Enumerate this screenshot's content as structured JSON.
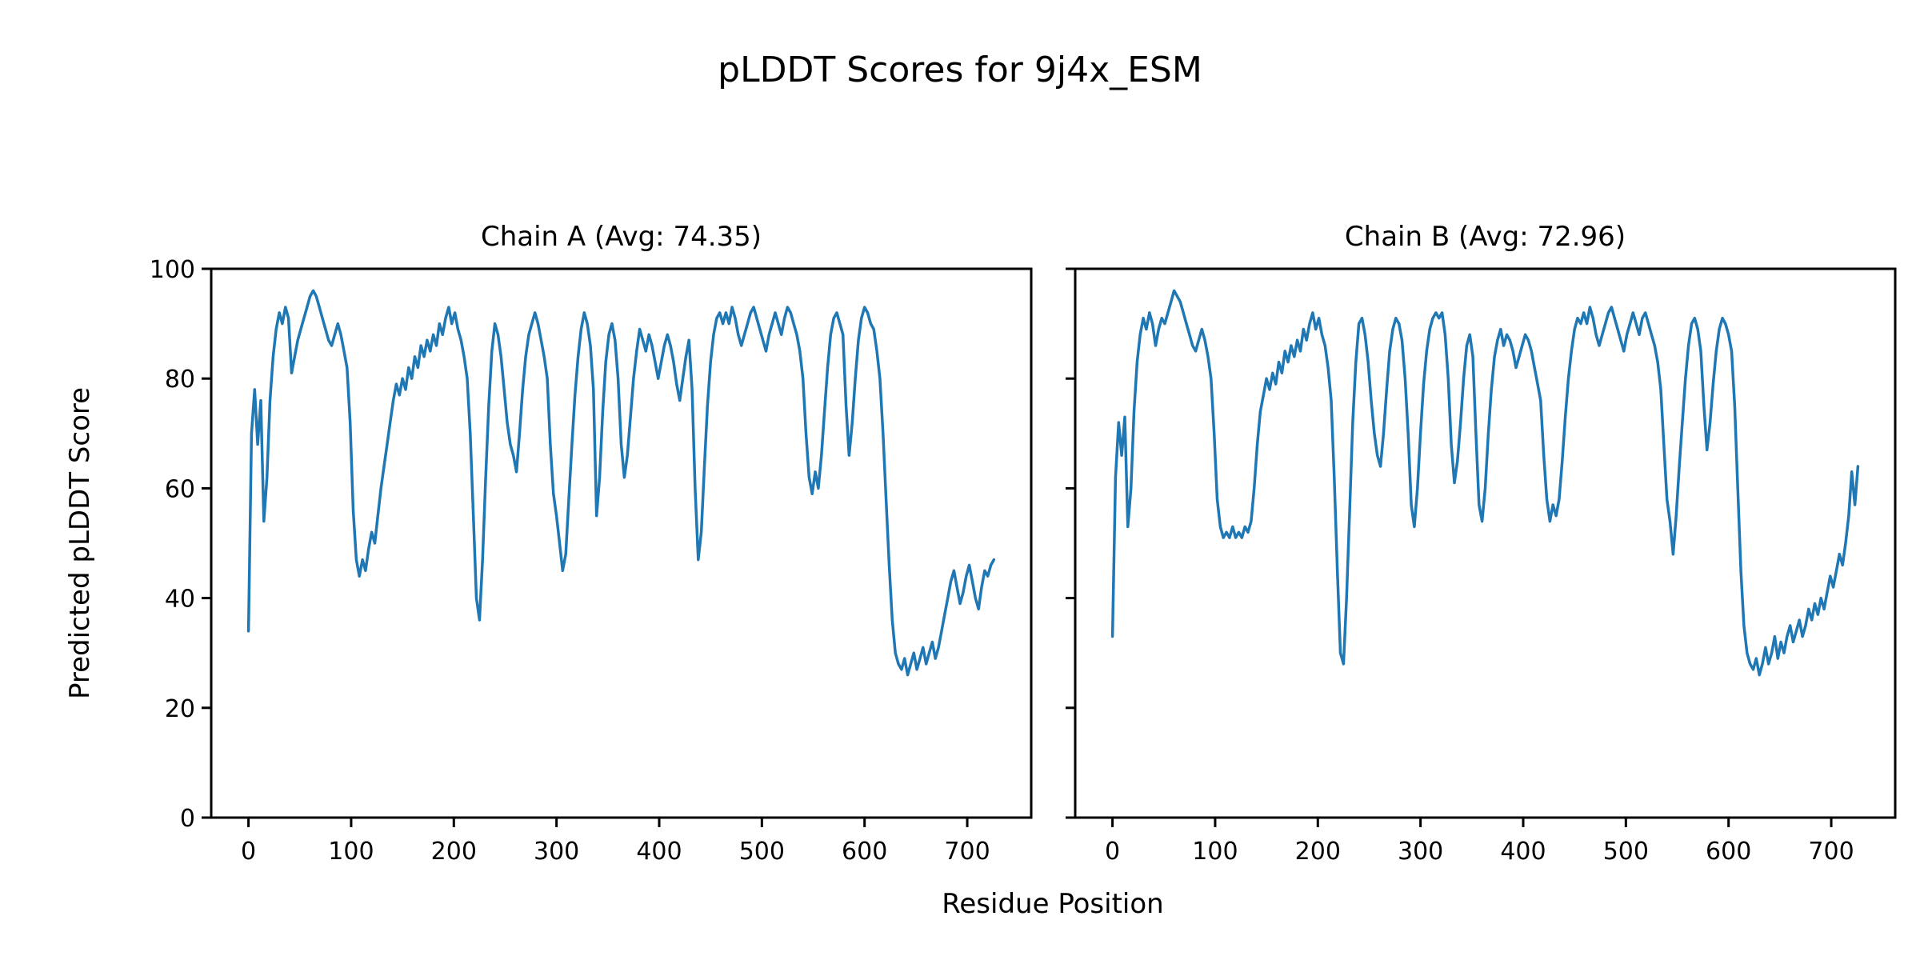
{
  "figure": {
    "title": "pLDDT Scores for 9j4x_ESM",
    "background_color": "#ffffff",
    "text_color": "#000000"
  },
  "shared": {
    "xlabel": "Residue Position",
    "ylabel": "Predicted pLDDT Score"
  },
  "chart_data": [
    {
      "type": "line",
      "title": "Chain A (Avg: 74.35)",
      "chain": "A",
      "average_plddt": 74.35,
      "line_color": "#1f77b4",
      "xlim": [
        -36.3,
        762.3
      ],
      "ylim": [
        0,
        100
      ],
      "x_ticks": [
        0,
        100,
        200,
        300,
        400,
        500,
        600,
        700
      ],
      "y_ticks": [
        0,
        20,
        40,
        60,
        80,
        100
      ],
      "y_tick_labels_shown": true,
      "grid": false,
      "legend": "none",
      "x_start": 0,
      "x_step": 3,
      "values": [
        34,
        70,
        78,
        68,
        76,
        54,
        62,
        76,
        84,
        89,
        92,
        90,
        93,
        91,
        81,
        84,
        87,
        89,
        91,
        93,
        95,
        96,
        95,
        93,
        91,
        89,
        87,
        86,
        88,
        90,
        88,
        85,
        82,
        72,
        56,
        47,
        44,
        47,
        45,
        49,
        52,
        50,
        55,
        60,
        64,
        68,
        72,
        76,
        79,
        77,
        80,
        78,
        82,
        80,
        84,
        82,
        86,
        84,
        87,
        85,
        88,
        86,
        90,
        88,
        91,
        93,
        90,
        92,
        89,
        87,
        84,
        80,
        70,
        55,
        40,
        36,
        47,
        62,
        75,
        85,
        90,
        88,
        84,
        78,
        72,
        68,
        66,
        63,
        70,
        78,
        84,
        88,
        90,
        92,
        90,
        87,
        84,
        80,
        68,
        59,
        55,
        50,
        45,
        48,
        58,
        68,
        77,
        84,
        89,
        92,
        90,
        86,
        78,
        55,
        62,
        74,
        83,
        88,
        90,
        87,
        80,
        68,
        62,
        66,
        73,
        80,
        85,
        89,
        87,
        85,
        88,
        86,
        83,
        80,
        83,
        86,
        88,
        86,
        83,
        79,
        76,
        80,
        84,
        87,
        78,
        60,
        47,
        52,
        64,
        75,
        83,
        88,
        91,
        92,
        90,
        92,
        90,
        93,
        91,
        88,
        86,
        88,
        90,
        92,
        93,
        91,
        89,
        87,
        85,
        88,
        90,
        92,
        90,
        88,
        91,
        93,
        92,
        90,
        88,
        85,
        80,
        70,
        62,
        59,
        63,
        60,
        66,
        74,
        82,
        88,
        91,
        92,
        90,
        88,
        75,
        66,
        72,
        80,
        87,
        91,
        93,
        92,
        90,
        89,
        85,
        80,
        70,
        58,
        46,
        36,
        30,
        28,
        27,
        29,
        26,
        28,
        30,
        27,
        29,
        31,
        28,
        30,
        32,
        29,
        31,
        34,
        37,
        40,
        43,
        45,
        42,
        39,
        41,
        44,
        46,
        43,
        40,
        38,
        42,
        45,
        44,
        46,
        47
      ]
    },
    {
      "type": "line",
      "title": "Chain B (Avg: 72.96)",
      "chain": "B",
      "average_plddt": 72.96,
      "line_color": "#1f77b4",
      "xlim": [
        -36.3,
        762.3
      ],
      "ylim": [
        0,
        100
      ],
      "x_ticks": [
        0,
        100,
        200,
        300,
        400,
        500,
        600,
        700
      ],
      "y_ticks": [
        0,
        20,
        40,
        60,
        80,
        100
      ],
      "y_tick_labels_shown": false,
      "grid": false,
      "legend": "none",
      "x_start": 0,
      "x_step": 3,
      "values": [
        33,
        62,
        72,
        66,
        73,
        53,
        60,
        74,
        83,
        88,
        91,
        89,
        92,
        90,
        86,
        89,
        91,
        90,
        92,
        94,
        96,
        95,
        94,
        92,
        90,
        88,
        86,
        85,
        87,
        89,
        87,
        84,
        80,
        70,
        58,
        53,
        51,
        52,
        51,
        53,
        51,
        52,
        51,
        53,
        52,
        54,
        60,
        68,
        74,
        77,
        80,
        78,
        81,
        79,
        83,
        81,
        85,
        83,
        86,
        84,
        87,
        85,
        89,
        87,
        90,
        92,
        89,
        91,
        88,
        86,
        82,
        76,
        62,
        45,
        30,
        28,
        40,
        56,
        72,
        83,
        90,
        91,
        88,
        83,
        76,
        70,
        66,
        64,
        70,
        78,
        85,
        89,
        91,
        90,
        87,
        80,
        70,
        57,
        53,
        60,
        70,
        79,
        85,
        89,
        91,
        92,
        91,
        92,
        88,
        80,
        68,
        61,
        65,
        72,
        80,
        86,
        88,
        84,
        70,
        57,
        54,
        60,
        70,
        78,
        84,
        87,
        89,
        86,
        88,
        87,
        85,
        82,
        84,
        86,
        88,
        87,
        85,
        82,
        79,
        76,
        66,
        58,
        54,
        57,
        55,
        58,
        65,
        73,
        80,
        85,
        89,
        91,
        90,
        92,
        90,
        93,
        91,
        88,
        86,
        88,
        90,
        92,
        93,
        91,
        89,
        87,
        85,
        88,
        90,
        92,
        90,
        88,
        91,
        92,
        90,
        88,
        86,
        83,
        78,
        68,
        58,
        54,
        48,
        55,
        64,
        72,
        80,
        86,
        90,
        91,
        89,
        85,
        75,
        67,
        72,
        79,
        85,
        89,
        91,
        90,
        88,
        85,
        75,
        60,
        45,
        35,
        30,
        28,
        27,
        29,
        26,
        28,
        31,
        28,
        30,
        33,
        29,
        32,
        30,
        33,
        35,
        32,
        34,
        36,
        33,
        35,
        38,
        36,
        39,
        37,
        40,
        38,
        41,
        44,
        42,
        45,
        48,
        46,
        50,
        55,
        63,
        57,
        64
      ]
    }
  ]
}
